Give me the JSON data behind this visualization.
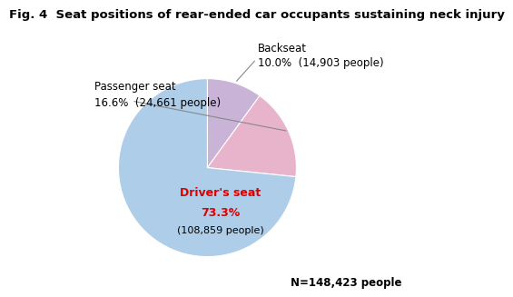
{
  "title": "Fig. 4  Seat positions of rear-ended car occupants sustaining neck injury",
  "slices": [
    {
      "label": "Driver's seat",
      "pct": 73.3,
      "people": "(108,859 people)",
      "color": "#aecde8"
    },
    {
      "label": "Passenger seat",
      "pct": 16.6,
      "people": "(24,661 people)",
      "color": "#e8b4cc"
    },
    {
      "label": "Backseat",
      "pct": 10.0,
      "people": "(14,903 people)",
      "color": "#c9b4d8"
    }
  ],
  "n_label": "N=148,423 people",
  "driver_label_color": "#dd0000",
  "background_color": "#ffffff",
  "title_fontsize": 9.5,
  "annotation_fontsize": 8.5,
  "n_fontsize": 8.5
}
